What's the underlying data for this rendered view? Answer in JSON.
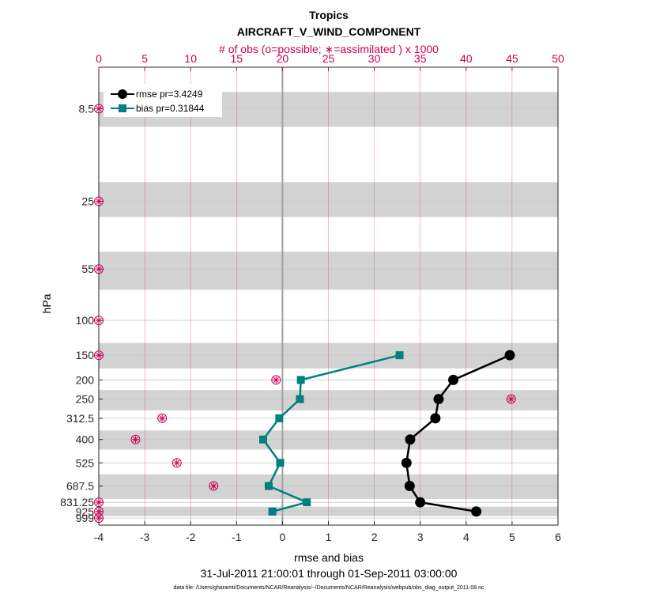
{
  "chart_data": {
    "type": "line",
    "title": "Tropics",
    "subtitle": "AIRCRAFT_V_WIND_COMPONENT",
    "top_axis_label": "# of obs (o=possible; ∗=assimilated ) x 1000",
    "xlabel": "rmse and bias",
    "ylabel": "hPa",
    "date_range": "31-Jul-2011 21:00:01 through 01-Sep-2011 03:00:00",
    "footnote": "data file: /Users/gharamti/Documents/NCAR/Reanalysis/~/Documents/NCAR/Reanalysis/webpub/obs_diag_output_2011-08.nc",
    "xlim": [
      -4,
      6
    ],
    "x_ticks": [
      -4,
      -3,
      -2,
      -1,
      0,
      1,
      2,
      3,
      4,
      5,
      6
    ],
    "top_xlim": [
      0,
      50
    ],
    "top_ticks": [
      0,
      5,
      10,
      15,
      20,
      25,
      30,
      35,
      40,
      45,
      50
    ],
    "levels": [
      8.5,
      25,
      55,
      100,
      150,
      200,
      250,
      312.5,
      400,
      525,
      687.5,
      831.25,
      925,
      999
    ],
    "level_labels": [
      "8.5",
      "25",
      "55",
      "100",
      "150",
      "200",
      "250",
      "312.5",
      "400",
      "525",
      "687.5",
      "831.25",
      "925",
      "999"
    ],
    "series": [
      {
        "name": "rmse",
        "legend": "rmse pr=3.4249",
        "color": "#000000",
        "marker": "circle",
        "levels": [
          150,
          200,
          250,
          312.5,
          400,
          525,
          687.5,
          831.25,
          925
        ],
        "values": [
          4.95,
          3.72,
          3.4,
          3.33,
          2.78,
          2.7,
          2.77,
          3.0,
          4.22
        ]
      },
      {
        "name": "bias",
        "legend": "bias pr=0.31844",
        "color": "#008080",
        "marker": "square",
        "levels": [
          150,
          200,
          250,
          312.5,
          400,
          525,
          687.5,
          831.25,
          925
        ],
        "values": [
          2.55,
          0.4,
          0.38,
          -0.07,
          -0.42,
          -0.05,
          -0.3,
          0.53,
          -0.22
        ]
      }
    ],
    "obs_counts": {
      "color": "#cc0055",
      "levels": [
        8.5,
        25,
        55,
        100,
        150,
        200,
        250,
        312.5,
        400,
        525,
        687.5,
        831.25,
        925,
        999
      ],
      "possible": [
        0,
        0,
        0,
        0,
        0,
        19.3,
        44.9,
        6.9,
        4.0,
        8.5,
        12.5,
        0,
        0,
        0
      ],
      "assimilated": [
        0,
        0,
        0,
        0,
        0,
        19.3,
        44.9,
        6.9,
        4.0,
        8.5,
        12.5,
        0,
        0,
        0
      ]
    },
    "shaded_bands": [
      [
        7,
        10.5
      ],
      [
        20,
        30
      ],
      [
        45,
        70
      ],
      [
        130,
        175
      ],
      [
        225,
        285
      ],
      [
        360,
        450
      ],
      [
        600,
        800
      ],
      [
        875,
        975
      ]
    ],
    "zero_line": 0,
    "legend_position": "top-left",
    "grid": true
  }
}
